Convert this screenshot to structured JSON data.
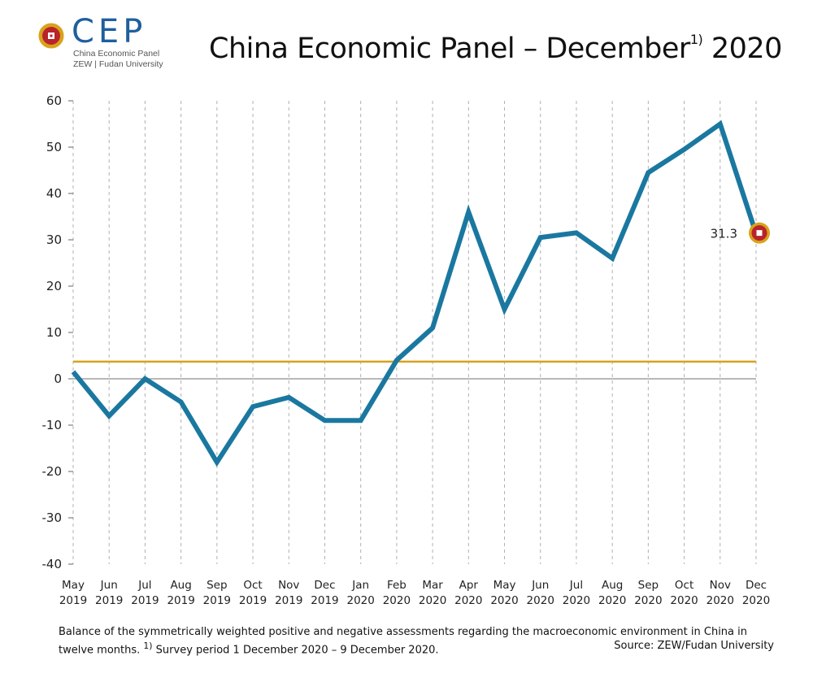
{
  "logo": {
    "name": "CEP",
    "subtitle_line1": "China Economic Panel",
    "subtitle_line2": "ZEW | Fudan University"
  },
  "header": {
    "title_prefix": "China Economic Panel – December",
    "title_superscript": "1)",
    "title_suffix": " 2020"
  },
  "caption": {
    "line1": "Balance of the symmetrically weighted positive and negative assessments regarding the macroeconomic environment in China in",
    "line2_text": "twelve months. ",
    "line2_superscript": "1)",
    "line2_rest": " Survey period 1 December 2020 – 9 December 2020.",
    "source": "Source: ZEW/Fudan University"
  },
  "colors": {
    "series": "#1a78a0",
    "reference_line": "#d9a21b",
    "zero_line": "#a0a0a0",
    "grid": "#b0b0b0",
    "marker_outer": "#d9a21b",
    "marker_inner": "#b8242a"
  },
  "chart_data": {
    "type": "line",
    "title": "China Economic Panel – December 2020",
    "xlabel": "",
    "ylabel": "",
    "ylim": [
      -40,
      60
    ],
    "yticks": [
      60,
      50,
      40,
      30,
      20,
      10,
      0,
      -10,
      -20,
      -30,
      -40
    ],
    "grid": "vertical dashed",
    "categories": [
      {
        "month": "May",
        "year": "2019"
      },
      {
        "month": "Jun",
        "year": "2019"
      },
      {
        "month": "Jul",
        "year": "2019"
      },
      {
        "month": "Aug",
        "year": "2019"
      },
      {
        "month": "Sep",
        "year": "2019"
      },
      {
        "month": "Oct",
        "year": "2019"
      },
      {
        "month": "Nov",
        "year": "2019"
      },
      {
        "month": "Dec",
        "year": "2019"
      },
      {
        "month": "Jan",
        "year": "2020"
      },
      {
        "month": "Feb",
        "year": "2020"
      },
      {
        "month": "Mar",
        "year": "2020"
      },
      {
        "month": "Apr",
        "year": "2020"
      },
      {
        "month": "May",
        "year": "2020"
      },
      {
        "month": "Jun",
        "year": "2020"
      },
      {
        "month": "Jul",
        "year": "2020"
      },
      {
        "month": "Aug",
        "year": "2020"
      },
      {
        "month": "Sep",
        "year": "2020"
      },
      {
        "month": "Oct",
        "year": "2020"
      },
      {
        "month": "Nov",
        "year": "2020"
      },
      {
        "month": "Dec",
        "year": "2020"
      }
    ],
    "series": [
      {
        "values": [
          1.5,
          -8.0,
          0.0,
          -5.0,
          -18.0,
          -6.0,
          -4.0,
          -9.0,
          -9.0,
          4.0,
          11.0,
          36.0,
          15.0,
          30.5,
          31.5,
          26.0,
          44.5,
          49.5,
          55.0,
          31.3
        ]
      }
    ],
    "reference_line": 3.7,
    "last_value_label": "31.3"
  }
}
